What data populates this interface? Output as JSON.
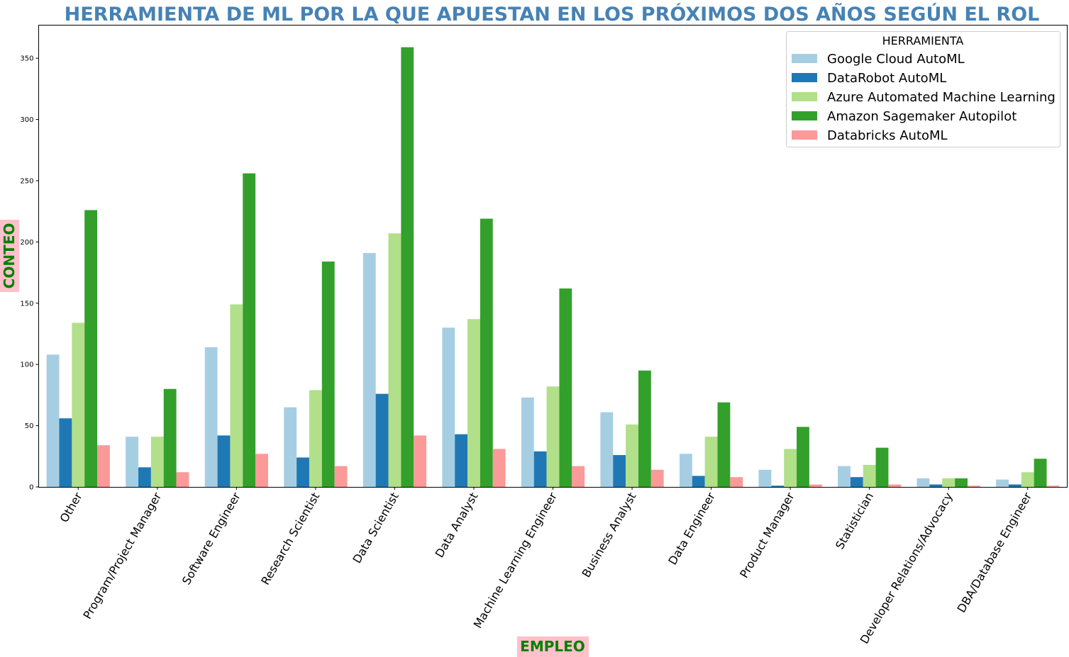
{
  "title": "HERRAMIENTA DE ML POR LA QUE APUESTAN EN LOS PRÓXIMOS DOS AÑOS SEGÚN EL ROL",
  "colors": {
    "title": "#4682b4",
    "axis_label_text": "#008000",
    "axis_label_bg": "#ffc0cb"
  },
  "chart_data": {
    "type": "bar",
    "title": "HERRAMIENTA DE ML POR LA QUE APUESTAN EN LOS PRÓXIMOS DOS AÑOS SEGÚN EL ROL",
    "xlabel": "EMPLEO",
    "ylabel": "CONTEO",
    "ylim": [
      0,
      377
    ],
    "yticks": [
      "0",
      "50",
      "100",
      "150",
      "200",
      "250",
      "300",
      "350"
    ],
    "legend_title": "HERRAMIENTA",
    "legend_position": "top-right",
    "grid": false,
    "categories": [
      "Other",
      "Program/Project Manager",
      "Software Engineer",
      "Research Scientist",
      "Data Scientist",
      "Data Analyst",
      "Machine Learning Engineer",
      "Business Analyst",
      "Data Engineer",
      "Product Manager",
      "Statistician",
      "Developer Relations/Advocacy",
      "DBA/Database Engineer"
    ],
    "series": [
      {
        "name": "Google Cloud AutoML",
        "color": "#a6cee3",
        "values": [
          108,
          41,
          114,
          65,
          191,
          130,
          73,
          61,
          27,
          14,
          17,
          7,
          6
        ]
      },
      {
        "name": "DataRobot AutoML",
        "color": "#1f78b4",
        "values": [
          56,
          16,
          42,
          24,
          76,
          43,
          29,
          26,
          9,
          1,
          8,
          2,
          2
        ]
      },
      {
        "name": "Azure Automated Machine Learning",
        "color": "#b2df8a",
        "values": [
          134,
          41,
          149,
          79,
          207,
          137,
          82,
          51,
          41,
          31,
          18,
          7,
          12
        ]
      },
      {
        "name": "Amazon Sagemaker Autopilot",
        "color": "#33a02c",
        "values": [
          226,
          80,
          256,
          184,
          359,
          219,
          162,
          95,
          69,
          49,
          32,
          7,
          23
        ]
      },
      {
        "name": "Databricks AutoML",
        "color": "#fb9a99",
        "values": [
          34,
          12,
          27,
          17,
          42,
          31,
          17,
          14,
          8,
          2,
          2,
          1,
          1
        ]
      }
    ]
  }
}
